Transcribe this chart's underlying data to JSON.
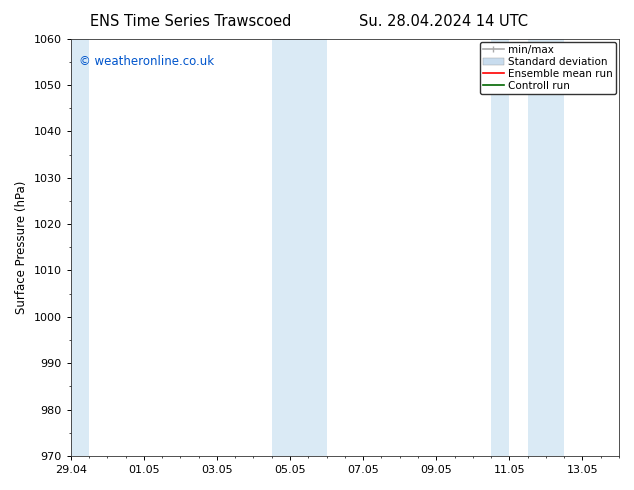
{
  "title_left": "ENS Time Series Trawscoed",
  "title_right": "Su. 28.04.2024 14 UTC",
  "ylabel": "Surface Pressure (hPa)",
  "ylim": [
    970,
    1060
  ],
  "yticks": [
    970,
    980,
    990,
    1000,
    1010,
    1020,
    1030,
    1040,
    1050,
    1060
  ],
  "xlim": [
    0,
    15
  ],
  "xtick_positions": [
    0,
    2,
    4,
    6,
    8,
    10,
    12,
    14
  ],
  "xtick_labels": [
    "29.04",
    "01.05",
    "03.05",
    "05.05",
    "07.05",
    "09.05",
    "11.05",
    "13.05"
  ],
  "background_color": "#ffffff",
  "plot_bg_color": "#ffffff",
  "shaded_bands": [
    {
      "xmin": 0.0,
      "xmax": 0.5,
      "color": "#daeaf5"
    },
    {
      "xmin": 5.5,
      "xmax": 6.5,
      "color": "#daeaf5"
    },
    {
      "xmin": 6.5,
      "xmax": 7.0,
      "color": "#daeaf5"
    },
    {
      "xmin": 11.5,
      "xmax": 12.0,
      "color": "#daeaf5"
    },
    {
      "xmin": 12.5,
      "xmax": 13.5,
      "color": "#daeaf5"
    }
  ],
  "legend_entries": [
    {
      "label": "min/max",
      "color": "#aaaaaa",
      "lw": 1.2,
      "style": "line_with_caps"
    },
    {
      "label": "Standard deviation",
      "color": "#c8dcee",
      "lw": 8,
      "style": "band"
    },
    {
      "label": "Ensemble mean run",
      "color": "#ff0000",
      "lw": 1.2,
      "style": "line"
    },
    {
      "label": "Controll run",
      "color": "#006600",
      "lw": 1.2,
      "style": "line"
    }
  ],
  "watermark_text": "© weatheronline.co.uk",
  "watermark_color": "#0055cc",
  "watermark_fontsize": 8.5,
  "title_fontsize": 10.5,
  "axis_label_fontsize": 8.5,
  "tick_fontsize": 8,
  "legend_fontsize": 7.5,
  "tick_color": "#000000"
}
